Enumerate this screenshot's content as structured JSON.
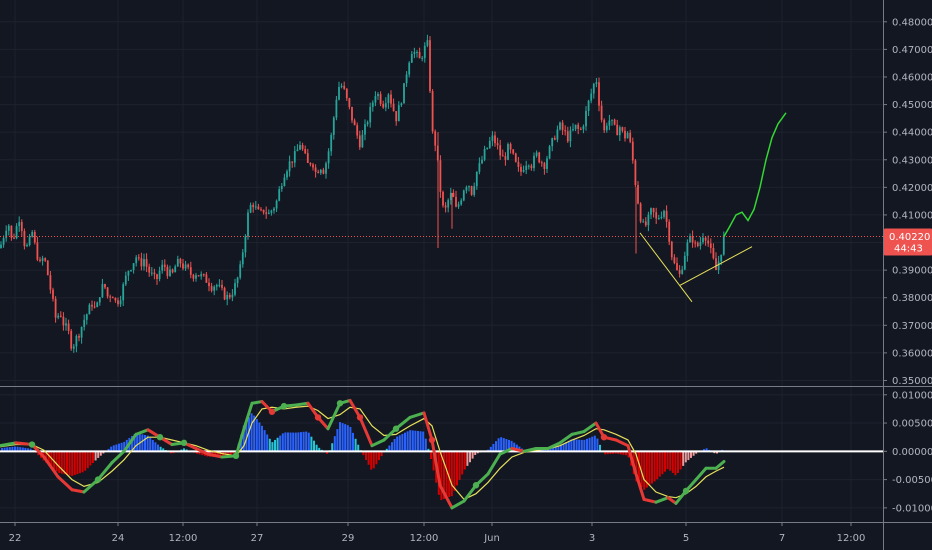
{
  "chart_data": [
    {
      "type": "candlestick",
      "title": "",
      "ylim": [
        0.348,
        0.485
      ],
      "y_ticks": [
        "0.48000",
        "0.47000",
        "0.46000",
        "0.45000",
        "0.44000",
        "0.43000",
        "0.42000",
        "0.41000",
        "0.40000",
        "0.39000",
        "0.38000",
        "0.37000",
        "0.36000",
        "0.35000"
      ],
      "x_ticks": [
        "22",
        "24",
        "12:00",
        "27",
        "29",
        "12:00",
        "Jun",
        "3",
        "5",
        "7",
        "12:00"
      ],
      "last_price": "0.40220",
      "countdown": "44:43",
      "colors": {
        "up": "#26a69a",
        "down": "#ef5350",
        "trendline": "#e6e15a",
        "projection": "#33d633",
        "price_line": "#ef5350",
        "background": "#131722"
      },
      "close_path": [
        [
          0,
          0.398
        ],
        [
          4,
          0.403
        ],
        [
          8,
          0.408
        ],
        [
          12,
          0.4
        ],
        [
          16,
          0.405
        ],
        [
          20,
          0.41
        ],
        [
          24,
          0.4
        ],
        [
          28,
          0.398
        ],
        [
          32,
          0.404
        ],
        [
          36,
          0.397
        ],
        [
          40,
          0.392
        ],
        [
          44,
          0.395
        ],
        [
          48,
          0.388
        ],
        [
          52,
          0.38
        ],
        [
          56,
          0.372
        ],
        [
          60,
          0.375
        ],
        [
          64,
          0.37
        ],
        [
          68,
          0.368
        ],
        [
          72,
          0.362
        ],
        [
          76,
          0.365
        ],
        [
          80,
          0.368
        ],
        [
          84,
          0.372
        ],
        [
          88,
          0.375
        ],
        [
          92,
          0.378
        ],
        [
          96,
          0.375
        ],
        [
          100,
          0.382
        ],
        [
          104,
          0.385
        ],
        [
          108,
          0.38
        ],
        [
          112,
          0.382
        ],
        [
          116,
          0.378
        ],
        [
          120,
          0.38
        ],
        [
          124,
          0.385
        ],
        [
          128,
          0.39
        ],
        [
          132,
          0.392
        ],
        [
          136,
          0.395
        ],
        [
          140,
          0.392
        ],
        [
          144,
          0.394
        ],
        [
          148,
          0.39
        ],
        [
          152,
          0.388
        ],
        [
          156,
          0.386
        ],
        [
          160,
          0.39
        ],
        [
          164,
          0.392
        ],
        [
          168,
          0.389
        ],
        [
          172,
          0.388
        ],
        [
          176,
          0.392
        ],
        [
          180,
          0.393
        ],
        [
          184,
          0.391
        ],
        [
          188,
          0.39
        ],
        [
          192,
          0.388
        ],
        [
          196,
          0.389
        ],
        [
          200,
          0.388
        ],
        [
          204,
          0.387
        ],
        [
          208,
          0.386
        ],
        [
          212,
          0.384
        ],
        [
          216,
          0.385
        ],
        [
          220,
          0.383
        ],
        [
          224,
          0.381
        ],
        [
          228,
          0.38
        ],
        [
          232,
          0.382
        ],
        [
          236,
          0.385
        ],
        [
          240,
          0.39
        ],
        [
          244,
          0.4
        ],
        [
          248,
          0.41
        ],
        [
          252,
          0.415
        ],
        [
          256,
          0.412
        ],
        [
          260,
          0.41
        ],
        [
          264,
          0.412
        ],
        [
          268,
          0.41
        ],
        [
          272,
          0.412
        ],
        [
          276,
          0.414
        ],
        [
          280,
          0.42
        ],
        [
          284,
          0.425
        ],
        [
          288,
          0.428
        ],
        [
          292,
          0.43
        ],
        [
          296,
          0.432
        ],
        [
          300,
          0.436
        ],
        [
          304,
          0.432
        ],
        [
          308,
          0.428
        ],
        [
          312,
          0.43
        ],
        [
          316,
          0.425
        ],
        [
          320,
          0.428
        ],
        [
          324,
          0.426
        ],
        [
          328,
          0.432
        ],
        [
          332,
          0.44
        ],
        [
          336,
          0.452
        ],
        [
          340,
          0.458
        ],
        [
          344,
          0.455
        ],
        [
          348,
          0.45
        ],
        [
          352,
          0.445
        ],
        [
          356,
          0.44
        ],
        [
          360,
          0.436
        ],
        [
          364,
          0.44
        ],
        [
          368,
          0.445
        ],
        [
          372,
          0.45
        ],
        [
          376,
          0.455
        ],
        [
          380,
          0.452
        ],
        [
          384,
          0.45
        ],
        [
          388,
          0.455
        ],
        [
          392,
          0.45
        ],
        [
          396,
          0.445
        ],
        [
          400,
          0.45
        ],
        [
          404,
          0.456
        ],
        [
          408,
          0.465
        ],
        [
          412,
          0.47
        ],
        [
          416,
          0.468
        ],
        [
          420,
          0.466
        ],
        [
          424,
          0.47
        ],
        [
          428,
          0.472
        ],
        [
          432,
          0.44
        ],
        [
          436,
          0.435
        ],
        [
          440,
          0.42
        ],
        [
          444,
          0.41
        ],
        [
          448,
          0.415
        ],
        [
          452,
          0.418
        ],
        [
          456,
          0.412
        ],
        [
          460,
          0.415
        ],
        [
          464,
          0.42
        ],
        [
          468,
          0.422
        ],
        [
          472,
          0.418
        ],
        [
          476,
          0.425
        ],
        [
          480,
          0.428
        ],
        [
          484,
          0.432
        ],
        [
          488,
          0.435
        ],
        [
          492,
          0.438
        ],
        [
          496,
          0.436
        ],
        [
          500,
          0.432
        ],
        [
          504,
          0.43
        ],
        [
          508,
          0.434
        ],
        [
          512,
          0.432
        ],
        [
          516,
          0.428
        ],
        [
          520,
          0.425
        ],
        [
          524,
          0.428
        ],
        [
          528,
          0.43
        ],
        [
          532,
          0.428
        ],
        [
          536,
          0.432
        ],
        [
          540,
          0.43
        ],
        [
          544,
          0.428
        ],
        [
          548,
          0.432
        ],
        [
          552,
          0.436
        ],
        [
          556,
          0.44
        ],
        [
          560,
          0.442
        ],
        [
          564,
          0.44
        ],
        [
          568,
          0.438
        ],
        [
          572,
          0.44
        ],
        [
          576,
          0.442
        ],
        [
          580,
          0.44
        ],
        [
          584,
          0.444
        ],
        [
          588,
          0.45
        ],
        [
          592,
          0.455
        ],
        [
          596,
          0.46
        ],
        [
          600,
          0.448
        ],
        [
          604,
          0.44
        ],
        [
          608,
          0.445
        ],
        [
          612,
          0.443
        ],
        [
          616,
          0.44
        ],
        [
          620,
          0.442
        ],
        [
          624,
          0.438
        ],
        [
          628,
          0.44
        ],
        [
          632,
          0.432
        ],
        [
          636,
          0.42
        ],
        [
          640,
          0.41
        ],
        [
          644,
          0.405
        ],
        [
          648,
          0.408
        ],
        [
          652,
          0.412
        ],
        [
          656,
          0.408
        ],
        [
          660,
          0.41
        ],
        [
          664,
          0.412
        ],
        [
          668,
          0.405
        ],
        [
          672,
          0.395
        ],
        [
          676,
          0.39
        ],
        [
          680,
          0.388
        ],
        [
          684,
          0.395
        ],
        [
          688,
          0.4
        ],
        [
          692,
          0.402
        ],
        [
          696,
          0.398
        ],
        [
          700,
          0.4
        ],
        [
          704,
          0.404
        ],
        [
          708,
          0.4
        ],
        [
          712,
          0.395
        ],
        [
          716,
          0.39
        ],
        [
          720,
          0.395
        ],
        [
          724,
          0.402
        ]
      ],
      "yellow_trendlines": [
        [
          [
            0.10667,
            0.3795
          ],
          [
            0.12667,
            0.38
          ]
        ],
        [
          [
            0.10667,
            0.393
          ],
          [
            0.14,
            0.412
          ]
        ]
      ],
      "projection": [
        [
          724,
          0.4022
        ],
        [
          730,
          0.406
        ],
        [
          736,
          0.41
        ],
        [
          742,
          0.411
        ],
        [
          748,
          0.408
        ],
        [
          754,
          0.412
        ],
        [
          760,
          0.42
        ],
        [
          766,
          0.43
        ],
        [
          772,
          0.438
        ],
        [
          778,
          0.443
        ],
        [
          786,
          0.447
        ]
      ]
    },
    {
      "type": "oscillator",
      "ylim": [
        -0.0125,
        0.0112
      ],
      "y_ticks": [
        "0.01000",
        "0.00500",
        "0.00000",
        "-0.00500",
        "-0.01000"
      ],
      "zero_line": 0,
      "colors": {
        "hist_pos_strong": "#2962ff",
        "hist_pos_weak": "#26c6da",
        "hist_neg_strong": "#d50000",
        "hist_neg_weak": "#ef9a9a",
        "fast": "#4caf50",
        "fast_down": "#e53935",
        "slow": "#e6e15a"
      },
      "fast_line": [
        [
          0,
          0.001
        ],
        [
          16,
          0.0015
        ],
        [
          32,
          0.0012
        ],
        [
          44,
          -0.001
        ],
        [
          58,
          -0.0045
        ],
        [
          72,
          -0.0068
        ],
        [
          84,
          -0.0072
        ],
        [
          98,
          -0.005
        ],
        [
          112,
          -0.002
        ],
        [
          124,
          0.0
        ],
        [
          136,
          0.003
        ],
        [
          148,
          0.0038
        ],
        [
          160,
          0.0025
        ],
        [
          172,
          0.0012
        ],
        [
          184,
          0.0015
        ],
        [
          196,
          0.0005
        ],
        [
          208,
          -0.0005
        ],
        [
          222,
          -0.001
        ],
        [
          236,
          -0.0008
        ],
        [
          244,
          0.004
        ],
        [
          252,
          0.0085
        ],
        [
          262,
          0.0088
        ],
        [
          272,
          0.007
        ],
        [
          284,
          0.008
        ],
        [
          296,
          0.0082
        ],
        [
          308,
          0.0085
        ],
        [
          318,
          0.006
        ],
        [
          328,
          0.004
        ],
        [
          340,
          0.0085
        ],
        [
          350,
          0.009
        ],
        [
          360,
          0.006
        ],
        [
          372,
          0.001
        ],
        [
          384,
          0.002
        ],
        [
          396,
          0.004
        ],
        [
          410,
          0.006
        ],
        [
          424,
          0.0068
        ],
        [
          432,
          0.002
        ],
        [
          440,
          -0.006
        ],
        [
          452,
          -0.01
        ],
        [
          464,
          -0.0088
        ],
        [
          476,
          -0.006
        ],
        [
          488,
          -0.004
        ],
        [
          500,
          -0.0005
        ],
        [
          512,
          0.0005
        ],
        [
          524,
          0.0
        ],
        [
          536,
          0.0005
        ],
        [
          548,
          0.0005
        ],
        [
          560,
          0.0015
        ],
        [
          572,
          0.003
        ],
        [
          584,
          0.0035
        ],
        [
          596,
          0.005
        ],
        [
          604,
          0.0025
        ],
        [
          616,
          0.002
        ],
        [
          628,
          0.001
        ],
        [
          636,
          -0.004
        ],
        [
          644,
          -0.0085
        ],
        [
          656,
          -0.009
        ],
        [
          668,
          -0.0082
        ],
        [
          676,
          -0.0092
        ],
        [
          686,
          -0.007
        ],
        [
          696,
          -0.005
        ],
        [
          706,
          -0.003
        ],
        [
          716,
          -0.003
        ],
        [
          724,
          -0.0018
        ]
      ],
      "slow_line": [
        [
          0,
          0.0008
        ],
        [
          16,
          0.0012
        ],
        [
          32,
          0.0012
        ],
        [
          44,
          0.0002
        ],
        [
          58,
          -0.0025
        ],
        [
          72,
          -0.005
        ],
        [
          84,
          -0.0062
        ],
        [
          98,
          -0.0055
        ],
        [
          112,
          -0.0035
        ],
        [
          124,
          -0.0015
        ],
        [
          136,
          0.001
        ],
        [
          148,
          0.0025
        ],
        [
          160,
          0.0025
        ],
        [
          172,
          0.002
        ],
        [
          184,
          0.0015
        ],
        [
          196,
          0.001
        ],
        [
          208,
          0.0002
        ],
        [
          222,
          -0.0004
        ],
        [
          236,
          -0.0008
        ],
        [
          244,
          0.001
        ],
        [
          252,
          0.005
        ],
        [
          262,
          0.0075
        ],
        [
          272,
          0.0078
        ],
        [
          284,
          0.0075
        ],
        [
          296,
          0.0078
        ],
        [
          308,
          0.008
        ],
        [
          318,
          0.0072
        ],
        [
          328,
          0.0058
        ],
        [
          340,
          0.0065
        ],
        [
          350,
          0.0078
        ],
        [
          360,
          0.0075
        ],
        [
          372,
          0.0045
        ],
        [
          384,
          0.0028
        ],
        [
          396,
          0.003
        ],
        [
          410,
          0.0045
        ],
        [
          424,
          0.0058
        ],
        [
          432,
          0.0045
        ],
        [
          440,
          0.0
        ],
        [
          452,
          -0.006
        ],
        [
          464,
          -0.0085
        ],
        [
          476,
          -0.0075
        ],
        [
          488,
          -0.0055
        ],
        [
          500,
          -0.003
        ],
        [
          512,
          -0.001
        ],
        [
          524,
          -0.0002
        ],
        [
          536,
          0.0002
        ],
        [
          548,
          0.0004
        ],
        [
          560,
          0.001
        ],
        [
          572,
          0.002
        ],
        [
          584,
          0.0028
        ],
        [
          596,
          0.004
        ],
        [
          604,
          0.0038
        ],
        [
          616,
          0.003
        ],
        [
          628,
          0.002
        ],
        [
          636,
          -0.0005
        ],
        [
          644,
          -0.005
        ],
        [
          656,
          -0.0072
        ],
        [
          668,
          -0.008
        ],
        [
          676,
          -0.0082
        ],
        [
          686,
          -0.0075
        ],
        [
          696,
          -0.0062
        ],
        [
          706,
          -0.0045
        ],
        [
          716,
          -0.0035
        ],
        [
          724,
          -0.0028
        ]
      ]
    }
  ]
}
